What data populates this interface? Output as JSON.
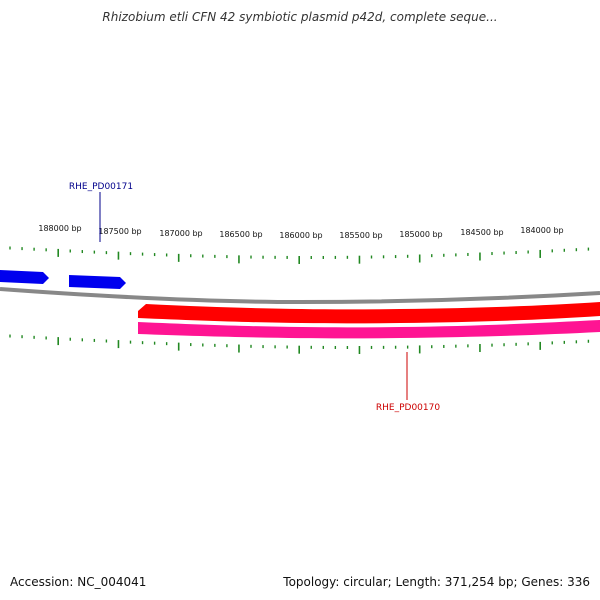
{
  "title": "Rhizobium etli CFN 42 symbiotic plasmid p42d, complete seque...",
  "footer": {
    "accession": "Accession: NC_004041",
    "info": "Topology: circular; Length: 371,254 bp; Genes: 336"
  },
  "ticks": [
    "188000 bp",
    "187500 bp",
    "187000 bp",
    "186500 bp",
    "186000 bp",
    "185500 bp",
    "185000 bp",
    "184500 bp",
    "184000 bp"
  ],
  "genes": {
    "forward_label": "RHE_PD00171",
    "reverse_label": "RHE_PD00170"
  },
  "colors": {
    "forward_gene": "#0000ee",
    "reverse_gene": "#ff0000",
    "reverse_gene_alt": "#ff1493",
    "backbone": "#888888",
    "tick": "#228822",
    "forward_label": "#00008b",
    "reverse_label": "#cc0000"
  }
}
